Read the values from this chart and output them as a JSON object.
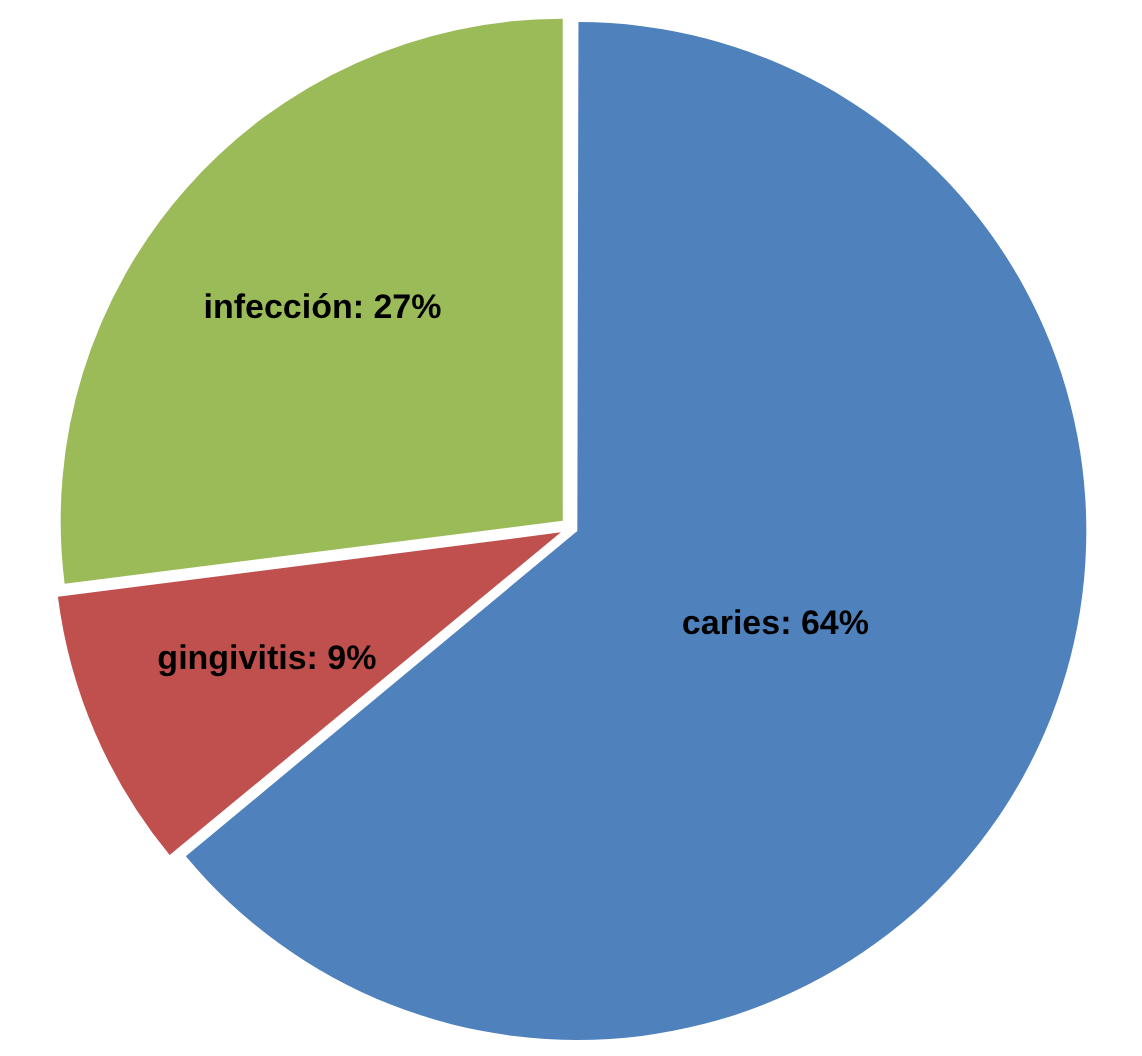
{
  "chart_data": {
    "type": "pie",
    "categories": [
      "caries",
      "gingivitis",
      "infección"
    ],
    "values": [
      64,
      9,
      27
    ],
    "colors": [
      "#4f81bd",
      "#c0504d",
      "#9bbb59"
    ],
    "value_labels": [
      "64%",
      "9%",
      "27%"
    ],
    "legend": false
  }
}
